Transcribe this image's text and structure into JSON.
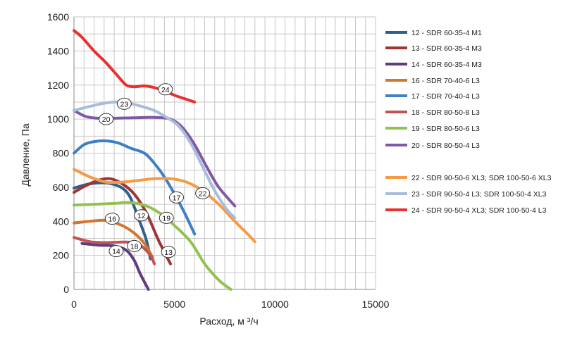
{
  "chart_data": {
    "type": "line",
    "title": "",
    "xlabel": "Расход, м ³/ч",
    "ylabel": "Давление, Па",
    "xlim": [
      0,
      15000
    ],
    "ylim": [
      0,
      1600
    ],
    "xticks": [
      0,
      5000,
      10000,
      15000
    ],
    "yticks": [
      0,
      200,
      400,
      600,
      800,
      1000,
      1200,
      1400,
      1600
    ],
    "xgrid_step": 500,
    "ygrid_step": 100,
    "grid": true,
    "legend_position": "right",
    "series": [
      {
        "name": "12 -  SDR 60-35-4 M1",
        "label": "12",
        "label_at": [
          3350,
          435
        ],
        "color": "#2f5f8f",
        "x": [
          0,
          600,
          1200,
          1800,
          2400,
          2800,
          3200,
          3600,
          3800
        ],
        "y": [
          595,
          615,
          625,
          622,
          595,
          540,
          420,
          290,
          180
        ]
      },
      {
        "name": "13 -  SDR 60-35-4 M3",
        "label": "13",
        "label_at": [
          4700,
          220
        ],
        "color": "#9e3534",
        "x": [
          0,
          600,
          1200,
          1800,
          2400,
          3000,
          3600,
          4200,
          4800
        ],
        "y": [
          570,
          610,
          640,
          650,
          620,
          560,
          450,
          290,
          150
        ]
      },
      {
        "name": "14 -  SDR 60-35-4 M3",
        "label": "14",
        "label_at": [
          2100,
          225
        ],
        "color": "#5e3d7e",
        "x": [
          400,
          1200,
          2000,
          2600,
          3000,
          3300,
          3700
        ],
        "y": [
          270,
          260,
          255,
          230,
          170,
          90,
          0
        ]
      },
      {
        "name": "16 -  SDR 70-40-6 L3",
        "label": "16",
        "label_at": [
          1900,
          415
        ],
        "color": "#d37630",
        "x": [
          0,
          800,
          1600,
          2400,
          3000,
          3500,
          3900
        ],
        "y": [
          390,
          400,
          405,
          375,
          330,
          270,
          190
        ]
      },
      {
        "name": "17 -  SDR 70-40-4 L3",
        "label": "17",
        "label_at": [
          5100,
          540
        ],
        "color": "#3f7fc6",
        "x": [
          0,
          500,
          1000,
          1600,
          2200,
          2800,
          3500,
          4000,
          4500,
          5000,
          5500,
          6000
        ],
        "y": [
          800,
          850,
          868,
          872,
          860,
          830,
          800,
          740,
          660,
          560,
          450,
          325
        ]
      },
      {
        "name": "18 -  SDR 80-50-8 L3",
        "label": "18",
        "label_at": [
          3000,
          255
        ],
        "color": "#c25353",
        "x": [
          0,
          800,
          1600,
          2400,
          3000,
          3400,
          3800,
          4000
        ],
        "y": [
          305,
          280,
          275,
          278,
          275,
          250,
          200,
          150
        ]
      },
      {
        "name": "19 -  SDR 80-50-6 L3",
        "label": "19",
        "label_at": [
          4600,
          420
        ],
        "color": "#93c14f",
        "x": [
          0,
          1000,
          2000,
          2800,
          3600,
          4300,
          5000,
          5800,
          6500,
          7200,
          7800
        ],
        "y": [
          495,
          500,
          505,
          510,
          490,
          445,
          375,
          280,
          150,
          55,
          0
        ]
      },
      {
        "name": "20 -  SDR 80-50-4 L3",
        "label": "20",
        "label_at": [
          1600,
          1000
        ],
        "color": "#7e5aa5",
        "x": [
          0,
          600,
          1200,
          2000,
          3000,
          4000,
          4800,
          5400,
          6000,
          6600,
          7200,
          8000
        ],
        "y": [
          1050,
          1015,
          1005,
          1005,
          1008,
          1010,
          1000,
          950,
          850,
          720,
          600,
          490
        ]
      },
      {
        "name": "22 -  SDR 90-50-6 XL3; SDR 100-50-6 XL3",
        "label": "22",
        "label_at": [
          6400,
          565
        ],
        "color": "#f59a46",
        "x": [
          0,
          800,
          1600,
          2400,
          3200,
          4000,
          4800,
          5600,
          6400,
          7200,
          8000,
          8600,
          9000
        ],
        "y": [
          705,
          660,
          630,
          630,
          640,
          650,
          650,
          630,
          580,
          500,
          400,
          330,
          280
        ]
      },
      {
        "name": "23 -  SDR 90-50-4 L3; SDR 100-50-4 XL3",
        "label": "23",
        "label_at": [
          2500,
          1090
        ],
        "color": "#a9bcdc",
        "x": [
          0,
          800,
          1600,
          2400,
          3200,
          4000,
          4600,
          5200,
          5800,
          6400,
          7000,
          7600,
          8000
        ],
        "y": [
          1050,
          1075,
          1095,
          1100,
          1080,
          1050,
          1010,
          960,
          860,
          720,
          580,
          470,
          420
        ]
      },
      {
        "name": "24 -  SDR 90-50-4 XL3; SDR 100-50-4 L3",
        "label": "24",
        "label_at": [
          4550,
          1175
        ],
        "color": "#e8302f",
        "x": [
          0,
          400,
          1000,
          1600,
          2200,
          2600,
          3000,
          3500,
          4000,
          4500,
          5000,
          5500,
          6000
        ],
        "y": [
          1520,
          1480,
          1400,
          1330,
          1250,
          1200,
          1190,
          1195,
          1185,
          1165,
          1140,
          1120,
          1100
        ]
      }
    ]
  }
}
